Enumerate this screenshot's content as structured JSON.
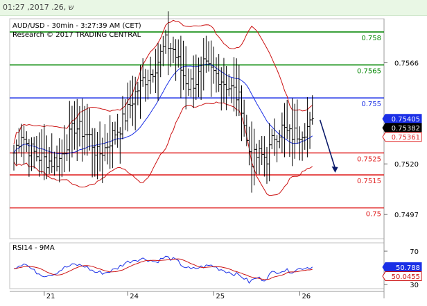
{
  "window": {
    "top_date": "ש ,26. 2017, 01:27"
  },
  "chart_data": [
    {
      "type": "line",
      "title": "AUD/USD - 30min - 3:27:39 AM (CET)",
      "subtitle": "Research © 2017 TRADING CENTRAL",
      "ylim": [
        0.7486,
        0.7586
      ],
      "y_ticks": [
        {
          "value": 0.7566,
          "label": "0.7566"
        },
        {
          "value": 0.752,
          "label": "0.7520"
        },
        {
          "value": 0.7497,
          "label": "0.7497"
        }
      ],
      "x_ticks": [
        {
          "index": 12,
          "label": "21"
        },
        {
          "index": 45,
          "label": "24"
        },
        {
          "index": 79,
          "label": "25"
        },
        {
          "index": 113,
          "label": "26"
        }
      ],
      "levels": [
        {
          "value": 0.758,
          "label": "0.758",
          "color": "#0a8a0a"
        },
        {
          "value": 0.7565,
          "label": "0.7565",
          "color": "#0a8a0a"
        },
        {
          "value": 0.755,
          "label": "0.755",
          "color": "#1a2fe6"
        },
        {
          "value": 0.7525,
          "label": "0.7525",
          "color": "#e02020"
        },
        {
          "value": 0.7515,
          "label": "0.7515",
          "color": "#e02020"
        },
        {
          "value": 0.75,
          "label": "0.75",
          "color": "#e02020"
        }
      ],
      "price_tags": [
        {
          "value": 0.75405,
          "label": "0.75405",
          "color": "#1a2fe6",
          "style": "filled"
        },
        {
          "value": 0.75382,
          "label": "0.75382",
          "color": "#000000",
          "style": "filled"
        },
        {
          "value": 0.75361,
          "label": "0.75361",
          "color": "#e02020",
          "style": "outline"
        }
      ],
      "close_anchors": [
        [
          0,
          0.7525
        ],
        [
          3,
          0.7534
        ],
        [
          6,
          0.7527
        ],
        [
          9,
          0.7524
        ],
        [
          12,
          0.7522
        ],
        [
          15,
          0.7521
        ],
        [
          18,
          0.7522
        ],
        [
          21,
          0.753
        ],
        [
          24,
          0.7537
        ],
        [
          27,
          0.7535
        ],
        [
          30,
          0.7532
        ],
        [
          33,
          0.7524
        ],
        [
          36,
          0.7527
        ],
        [
          39,
          0.7533
        ],
        [
          42,
          0.7537
        ],
        [
          45,
          0.7544
        ],
        [
          48,
          0.7552
        ],
        [
          51,
          0.7558
        ],
        [
          54,
          0.7561
        ],
        [
          57,
          0.7567
        ],
        [
          60,
          0.7575
        ],
        [
          63,
          0.7572
        ],
        [
          66,
          0.7563
        ],
        [
          69,
          0.7556
        ],
        [
          72,
          0.7558
        ],
        [
          75,
          0.7564
        ],
        [
          78,
          0.7562
        ],
        [
          81,
          0.756
        ],
        [
          84,
          0.7556
        ],
        [
          87,
          0.7553
        ],
        [
          90,
          0.7547
        ],
        [
          92,
          0.753
        ],
        [
          94,
          0.7522
        ],
        [
          97,
          0.7524
        ],
        [
          100,
          0.7523
        ],
        [
          103,
          0.7533
        ],
        [
          106,
          0.7536
        ],
        [
          109,
          0.7533
        ],
        [
          112,
          0.7534
        ],
        [
          115,
          0.7536
        ],
        [
          118,
          0.7538
        ]
      ],
      "series": [
        {
          "key": "price",
          "color": "#000000"
        },
        {
          "key": "upper_band",
          "color": "#cc1111"
        },
        {
          "key": "lower_band",
          "color": "#cc1111"
        },
        {
          "key": "moving_average",
          "color": "#1a2fe6"
        }
      ],
      "forecast_arrow": {
        "from": [
          121,
          0.754
        ],
        "to": [
          127,
          0.7516
        ]
      }
    },
    {
      "type": "line",
      "title": "RSI14 - 9MA",
      "ylim": [
        25,
        80
      ],
      "y_ticks": [
        {
          "value": 70,
          "label": "70"
        },
        {
          "value": 30,
          "label": "30"
        }
      ],
      "rsi_anchors": [
        [
          0,
          50
        ],
        [
          4,
          56
        ],
        [
          8,
          46
        ],
        [
          12,
          41
        ],
        [
          16,
          43
        ],
        [
          20,
          50
        ],
        [
          24,
          54
        ],
        [
          28,
          52
        ],
        [
          32,
          45
        ],
        [
          36,
          44
        ],
        [
          40,
          48
        ],
        [
          44,
          56
        ],
        [
          48,
          60
        ],
        [
          52,
          61
        ],
        [
          56,
          57
        ],
        [
          60,
          63
        ],
        [
          64,
          59
        ],
        [
          67,
          52
        ],
        [
          70,
          48
        ],
        [
          74,
          51
        ],
        [
          78,
          53
        ],
        [
          82,
          48
        ],
        [
          86,
          44
        ],
        [
          90,
          40
        ],
        [
          93,
          33
        ],
        [
          96,
          38
        ],
        [
          99,
          36
        ],
        [
          102,
          44
        ],
        [
          106,
          47
        ],
        [
          110,
          46
        ],
        [
          114,
          50
        ],
        [
          118,
          51
        ]
      ],
      "series": [
        {
          "key": "rsi",
          "color": "#1a2fe6"
        },
        {
          "key": "rsi_ma",
          "color": "#cc1111"
        }
      ],
      "tags": [
        {
          "value": 50.788,
          "label": "50.788",
          "color": "#1a2fe6",
          "style": "filled"
        },
        {
          "value": 50.0455,
          "label": "50.0455",
          "color": "#cc1111",
          "style": "outline"
        }
      ]
    }
  ]
}
